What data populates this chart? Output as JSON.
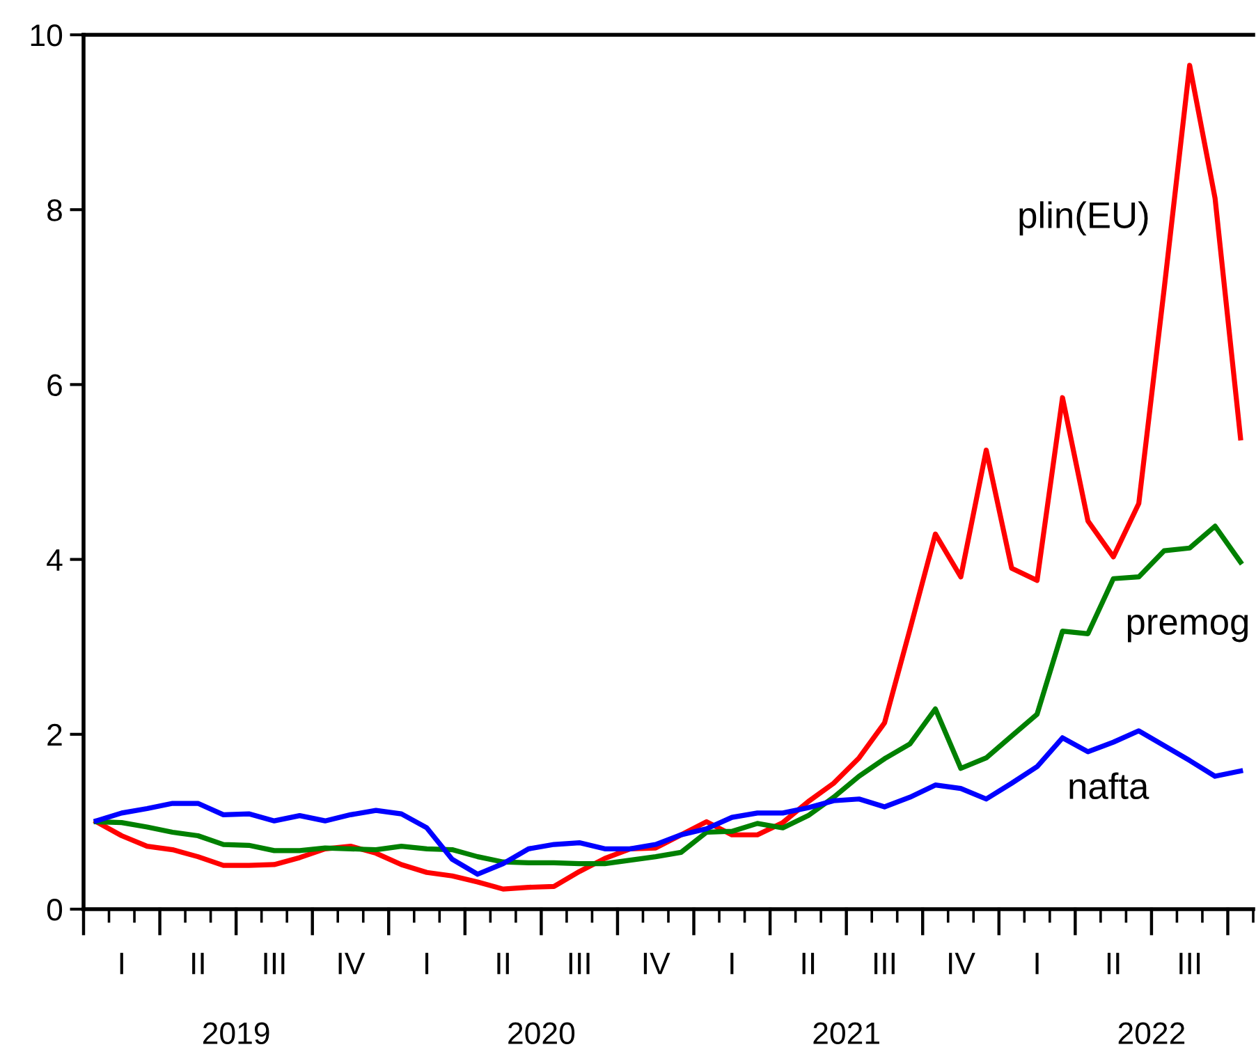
{
  "chart_data": {
    "type": "line",
    "categories": [
      null,
      "I",
      null,
      null,
      "II",
      null,
      null,
      "III",
      null,
      null,
      "IV",
      null,
      null,
      "I",
      null,
      null,
      "II",
      null,
      null,
      "III",
      null,
      null,
      "IV",
      null,
      null,
      "I",
      null,
      null,
      "II",
      null,
      null,
      "III",
      null,
      null,
      "IV",
      null,
      null,
      "I",
      null,
      null,
      "II",
      null,
      null,
      "III",
      null,
      null
    ],
    "series": [
      {
        "name": "plin(EU)",
        "color": "#ff0000",
        "values": [
          1.0,
          0.84,
          0.72,
          0.68,
          0.6,
          0.5,
          0.5,
          0.51,
          0.59,
          0.69,
          0.72,
          0.64,
          0.51,
          0.42,
          0.38,
          0.31,
          0.23,
          0.25,
          0.26,
          0.43,
          0.58,
          0.69,
          0.7,
          0.85,
          1.0,
          0.85,
          0.85,
          0.99,
          1.23,
          1.44,
          1.73,
          2.13,
          3.2,
          4.29,
          3.8,
          5.25,
          3.9,
          3.76,
          5.85,
          4.44,
          4.03,
          4.64,
          7.1,
          9.65,
          8.13,
          5.39
        ]
      },
      {
        "name": "premog",
        "color": "#008000",
        "values": [
          1.0,
          0.99,
          0.94,
          0.88,
          0.84,
          0.74,
          0.73,
          0.67,
          0.67,
          0.7,
          0.69,
          0.68,
          0.72,
          0.69,
          0.68,
          0.6,
          0.54,
          0.53,
          0.53,
          0.52,
          0.52,
          0.56,
          0.6,
          0.65,
          0.88,
          0.89,
          0.98,
          0.93,
          1.07,
          1.28,
          1.52,
          1.72,
          1.89,
          2.29,
          1.61,
          1.73,
          1.98,
          2.23,
          3.18,
          3.15,
          3.78,
          3.8,
          4.1,
          4.13,
          4.38,
          3.97
        ]
      },
      {
        "name": "nafta",
        "color": "#0000ff",
        "values": [
          1.01,
          1.1,
          1.15,
          1.21,
          1.21,
          1.08,
          1.09,
          1.01,
          1.07,
          1.01,
          1.08,
          1.13,
          1.09,
          0.93,
          0.57,
          0.4,
          0.52,
          0.69,
          0.74,
          0.76,
          0.69,
          0.69,
          0.74,
          0.85,
          0.92,
          1.05,
          1.1,
          1.1,
          1.16,
          1.24,
          1.26,
          1.17,
          1.28,
          1.42,
          1.38,
          1.26,
          1.44,
          1.63,
          1.96,
          1.8,
          1.91,
          2.04,
          1.87,
          1.7,
          1.52,
          1.58
        ]
      }
    ],
    "annotations": [
      "2019",
      "2020",
      "2021",
      "2022"
    ],
    "ylim": [
      0,
      10
    ],
    "yticks": [
      0,
      2,
      4,
      6,
      8,
      10
    ],
    "grid": false,
    "legend": false
  }
}
